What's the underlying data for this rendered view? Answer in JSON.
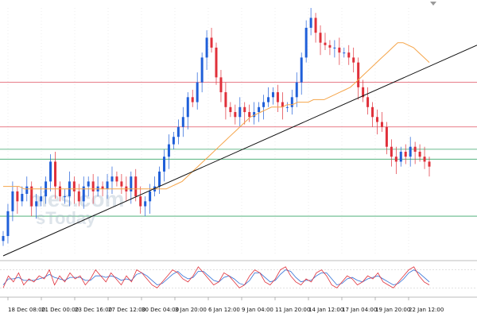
{
  "chart_data": {
    "type": "candlestick",
    "title": "",
    "colors": {
      "bull": "#1f5fd9",
      "bear": "#e0303a",
      "ma": "#f5a54a",
      "trendline": "#111111",
      "level_red": "#e05060",
      "level_green": "#3aa66a",
      "stoch_k": "#e0303a",
      "stoch_d": "#2f6fd6",
      "grid": "#c8c8c8"
    },
    "x_labels": [
      "18 Dec 08:00",
      "21 Dec 00:00",
      "23 Dec 16:00",
      "27 Dec 12:00",
      "30 Dec 04:00",
      "3 Jan 20:00",
      "6 Jan 12:00",
      "9 Jan 04:00",
      "11 Jan 20:00",
      "14 Jan 12:00",
      "17 Jan 04:00",
      "19 Jan 20:00",
      "22 Jan 12:00"
    ],
    "y_range": [
      0,
      100
    ],
    "price_series": [
      8,
      18,
      26,
      22,
      25,
      28,
      20,
      22,
      24,
      30,
      38,
      28,
      24,
      24,
      30,
      26,
      22,
      28,
      30,
      26,
      28,
      27,
      30,
      32,
      30,
      28,
      26,
      32,
      24,
      20,
      22,
      26,
      28,
      34,
      40,
      45,
      48,
      52,
      56,
      64,
      62,
      70,
      80,
      88,
      84,
      72,
      66,
      60,
      58,
      56,
      60,
      58,
      56,
      58,
      60,
      62,
      64,
      66,
      62,
      60,
      60,
      64,
      70,
      80,
      92,
      96,
      90,
      86,
      85,
      84,
      84,
      82,
      82,
      80,
      78,
      68,
      64,
      60,
      56,
      54,
      52,
      44,
      40,
      38,
      42,
      40,
      44,
      42,
      40,
      38,
      36
    ],
    "ma_series": [
      28,
      28,
      28,
      28,
      27,
      27,
      27,
      27,
      27,
      27,
      27,
      27,
      27,
      27,
      27,
      27,
      27,
      27,
      27,
      27,
      27,
      27,
      27,
      27,
      27,
      27,
      27,
      27,
      27,
      27,
      27,
      27,
      28,
      29,
      30,
      32,
      34,
      36,
      38,
      40,
      42,
      44,
      46,
      48,
      50,
      52,
      54,
      56,
      57,
      58,
      59,
      60,
      60,
      60,
      61,
      61,
      62,
      62,
      62,
      63,
      63,
      63,
      64,
      65,
      66,
      67,
      68,
      70,
      72,
      74,
      76,
      78,
      80,
      82,
      84,
      86,
      86,
      85,
      84,
      82,
      80,
      78
    ],
    "trendline": [
      {
        "x": 0,
        "y": 0
      },
      {
        "x": 1,
        "y": 85
      }
    ],
    "levels": [
      {
        "y": 70,
        "color": "level_red"
      },
      {
        "y": 52,
        "color": "level_red"
      },
      {
        "y": 43,
        "color": "level_green"
      },
      {
        "y": 39,
        "color": "level_green"
      },
      {
        "y": 16,
        "color": "level_green"
      }
    ],
    "stoch_k": [
      20,
      60,
      40,
      70,
      30,
      50,
      40,
      60,
      50,
      80,
      30,
      60,
      40,
      70,
      50,
      60,
      30,
      50,
      80,
      60,
      40,
      70,
      50,
      30,
      60,
      40,
      80,
      70,
      50,
      30,
      20,
      40,
      60,
      80,
      70,
      50,
      40,
      60,
      90,
      70,
      50,
      30,
      40,
      70,
      60,
      40,
      20,
      30,
      60,
      80,
      70,
      40,
      30,
      50,
      80,
      90,
      60,
      40,
      30,
      50,
      40,
      70,
      80,
      60,
      30,
      20,
      40,
      60,
      50,
      30,
      40,
      60,
      50,
      70,
      40,
      30,
      20,
      40,
      60,
      80,
      90,
      60,
      40,
      30
    ],
    "stoch_d": [
      30,
      50,
      50,
      55,
      45,
      45,
      45,
      50,
      55,
      65,
      55,
      50,
      45,
      55,
      55,
      55,
      45,
      45,
      60,
      60,
      55,
      60,
      55,
      45,
      50,
      45,
      65,
      70,
      60,
      45,
      30,
      35,
      50,
      65,
      75,
      60,
      50,
      55,
      75,
      75,
      60,
      45,
      40,
      55,
      60,
      50,
      35,
      30,
      45,
      70,
      70,
      55,
      40,
      45,
      65,
      80,
      75,
      55,
      40,
      45,
      45,
      60,
      70,
      70,
      50,
      30,
      35,
      50,
      55,
      45,
      40,
      50,
      55,
      60,
      50,
      40,
      30,
      35,
      50,
      70,
      80,
      70,
      55,
      40
    ],
    "stoch_levels": [
      80,
      20
    ]
  }
}
